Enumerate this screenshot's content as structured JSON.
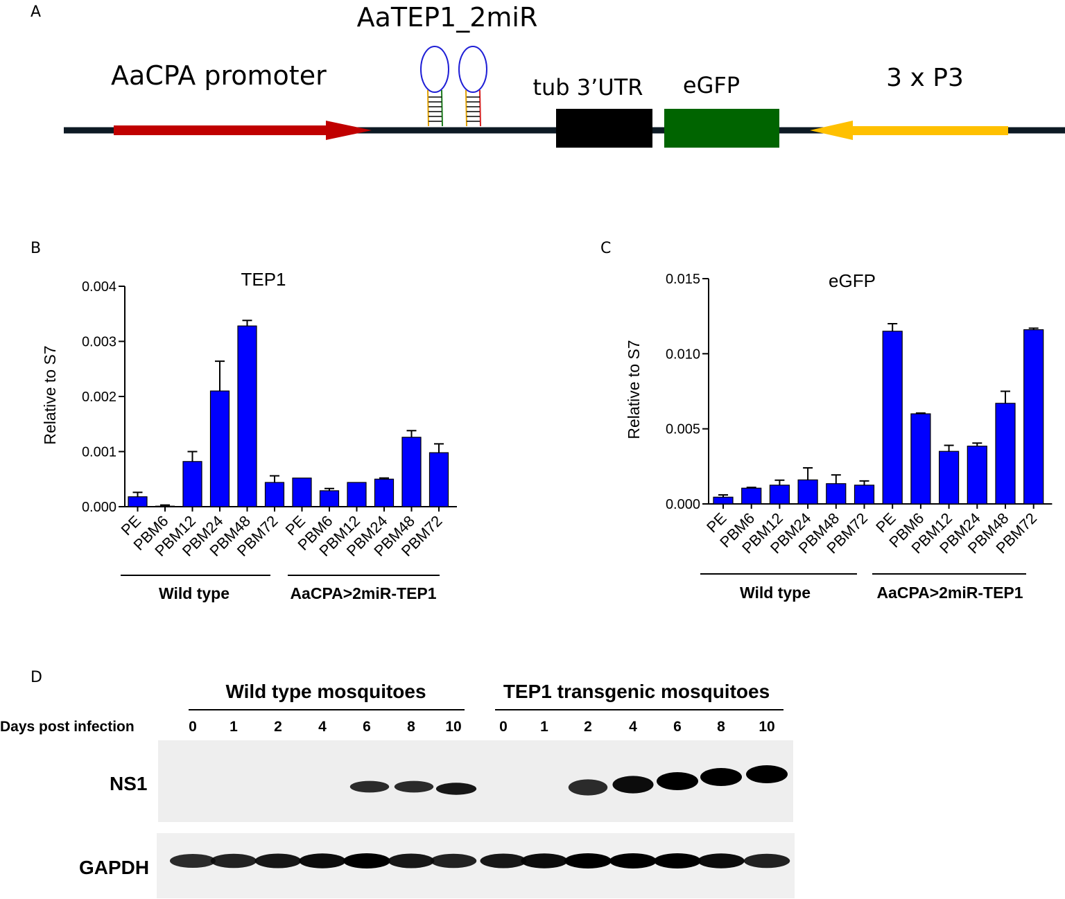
{
  "panel_a": {
    "panel_letter": "A",
    "construct_name": "AaTEP1_2miR",
    "promoter": "AaCPA promoter",
    "utr": "tub 3’UTR",
    "reporter": "eGFP",
    "marker_promoter": "3 x P3",
    "colors": {
      "promoter_arrow": "#c00000",
      "utr_box": "#000000",
      "egfp_box": "#006400",
      "p3_arrow": "#ffc000",
      "hairpin_loop": "#1f1fd6"
    }
  },
  "panel_b": {
    "panel_letter": "B",
    "group_labels": [
      "Wild type",
      "AaCPA>2miR-TEP1"
    ]
  },
  "panel_c": {
    "panel_letter": "C",
    "group_labels": [
      "Wild type",
      "AaCPA>2miR-TEP1"
    ]
  },
  "panel_d": {
    "panel_letter": "D",
    "group_left": "Wild type mosquitoes",
    "group_right": "TEP1 transgenic mosquitoes",
    "row_header": "Days post infection",
    "days_left": [
      "0",
      "1",
      "2",
      "4",
      "6",
      "8",
      "10"
    ],
    "days_right": [
      "0",
      "1",
      "2",
      "4",
      "6",
      "8",
      "10"
    ],
    "blot_ns1": "NS1",
    "blot_gapdh": "GAPDH",
    "ns1_intensity_wt": [
      0,
      0,
      0,
      0,
      0.8,
      0.8,
      0.9
    ],
    "ns1_intensity_tg": [
      0,
      0,
      0.8,
      0.95,
      1.0,
      1.0,
      1.0
    ],
    "gapdh_intensity_wt": [
      0.8,
      0.85,
      0.9,
      0.95,
      1.0,
      0.9,
      0.85
    ],
    "gapdh_intensity_tg": [
      0.9,
      0.95,
      1.0,
      1.0,
      1.0,
      0.95,
      0.85
    ]
  },
  "chart_data": [
    {
      "type": "bar",
      "title": "TEP1",
      "ylabel": "Relative to S7",
      "ylim": [
        0,
        0.004
      ],
      "yticks": [
        "0.000",
        "0.001",
        "0.002",
        "0.003",
        "0.004"
      ],
      "ytick_values": [
        0,
        0.001,
        0.002,
        0.003,
        0.004
      ],
      "categories": [
        "PE",
        "PBM6",
        "PBM12",
        "PBM24",
        "PBM48",
        "PBM72",
        "PE",
        "PBM6",
        "PBM12",
        "PBM24",
        "PBM48",
        "PBM72"
      ],
      "values": [
        0.00018,
        1e-05,
        0.00082,
        0.0021,
        0.00328,
        0.00044,
        0.00052,
        0.00029,
        0.00044,
        0.0005,
        0.00126,
        0.00098
      ],
      "errors": [
        8e-05,
        2e-05,
        0.00018,
        0.00054,
        0.0001,
        0.00012,
        0.0,
        4e-05,
        0.0,
        2e-05,
        0.00012,
        0.00016
      ],
      "bar_color": "#0000ff",
      "groups": [
        {
          "name": "Wild type",
          "from": 0,
          "to": 5
        },
        {
          "name": "AaCPA>2miR-TEP1",
          "from": 6,
          "to": 11
        }
      ]
    },
    {
      "type": "bar",
      "title": "eGFP",
      "ylabel": "Relative to S7",
      "ylim": [
        0,
        0.015
      ],
      "yticks": [
        "0.000",
        "0.005",
        "0.010",
        "0.015"
      ],
      "ytick_values": [
        0,
        0.005,
        0.01,
        0.015
      ],
      "categories": [
        "PE",
        "PBM6",
        "PBM12",
        "PBM24",
        "PBM48",
        "PBM72",
        "PE",
        "PBM6",
        "PBM12",
        "PBM24",
        "PBM48",
        "PBM72"
      ],
      "values": [
        0.00045,
        0.00105,
        0.00125,
        0.0016,
        0.00135,
        0.00125,
        0.0115,
        0.006,
        0.0035,
        0.00385,
        0.0067,
        0.0116
      ],
      "errors": [
        0.00015,
        5e-05,
        0.00033,
        0.0008,
        0.00058,
        0.00028,
        0.0005,
        5e-05,
        0.0004,
        0.0002,
        0.0008,
        0.0001
      ],
      "bar_color": "#0000ff",
      "groups": [
        {
          "name": "Wild type",
          "from": 0,
          "to": 5
        },
        {
          "name": "AaCPA>2miR-TEP1",
          "from": 6,
          "to": 11
        }
      ]
    }
  ]
}
